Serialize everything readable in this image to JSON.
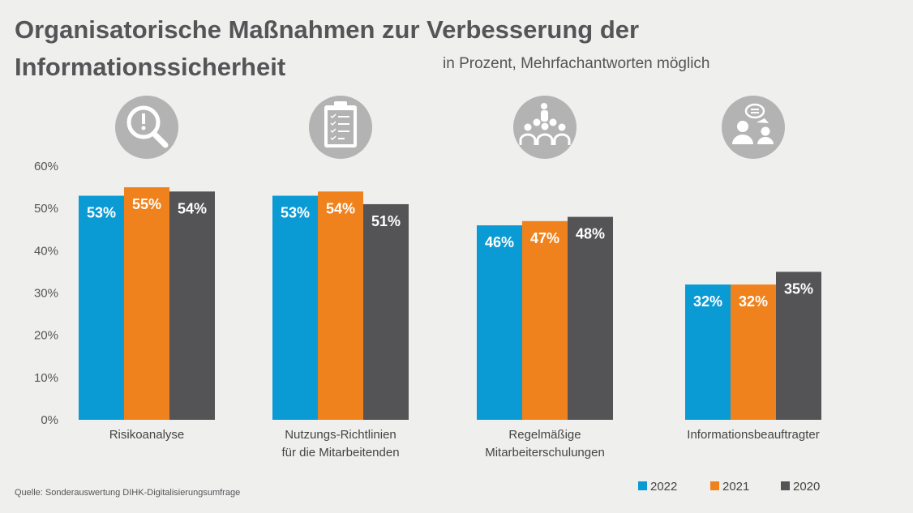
{
  "chart_data": {
    "type": "bar",
    "title": "Organisatorische Maßnahmen zur Verbesserung der Informationssicherheit",
    "subtitle": "in Prozent, Mehrfachantworten möglich",
    "source": "Quelle: Sonderauswertung DIHK-Digitalisierungsumfrage",
    "categories": [
      [
        "Risikoanalyse"
      ],
      [
        "Nutzungs-Richtlinien",
        "für die Mitarbeitenden"
      ],
      [
        "Regelmäßige",
        "Mitarbeiterschulungen"
      ],
      [
        "Informationsbeauftragter"
      ]
    ],
    "category_icons": [
      "magnifier-exclamation-icon",
      "clipboard-checklist-icon",
      "presenter-audience-icon",
      "people-speech-bubble-icon"
    ],
    "series": [
      {
        "name": "2022",
        "color": "#0a9bd5",
        "values": [
          53,
          53,
          46,
          32
        ]
      },
      {
        "name": "2021",
        "color": "#f0821d",
        "values": [
          55,
          54,
          47,
          32
        ]
      },
      {
        "name": "2020",
        "color": "#545456",
        "values": [
          54,
          51,
          48,
          35
        ]
      }
    ],
    "yticks": [
      "0%",
      "10%",
      "20%",
      "30%",
      "40%",
      "50%",
      "60%"
    ],
    "ylim": [
      0,
      60
    ],
    "grid": false,
    "legend_position": "bottom-right",
    "value_suffix": "%"
  }
}
